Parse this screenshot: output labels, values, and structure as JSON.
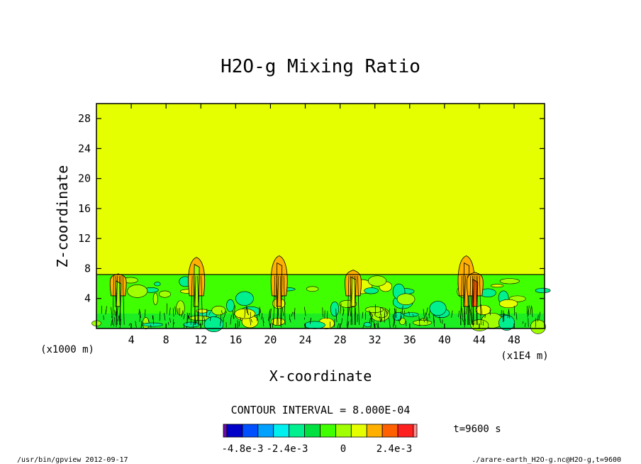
{
  "chart_data": {
    "type": "heatmap",
    "title": "H2O-g Mixing Ratio",
    "xlabel": "X-coordinate",
    "ylabel": "Z-coordinate",
    "x_unit_left": "(x1000 m)",
    "x_unit_right": "(x1E4 m)",
    "xlim": [
      0,
      51.5
    ],
    "ylim": [
      0,
      30
    ],
    "x_ticks": [
      4,
      8,
      12,
      16,
      20,
      24,
      28,
      32,
      36,
      40,
      44,
      48
    ],
    "y_ticks": [
      4,
      8,
      12,
      16,
      20,
      24,
      28
    ],
    "layer_top_z": 7.2,
    "plumes": [
      {
        "x": 2.5,
        "z": 7.3,
        "level": 8
      },
      {
        "x": 11.5,
        "z": 9.5,
        "level": 8
      },
      {
        "x": 21.0,
        "z": 9.7,
        "level": 10
      },
      {
        "x": 29.5,
        "z": 7.8,
        "level": 9
      },
      {
        "x": 42.5,
        "z": 9.7,
        "level": 10
      },
      {
        "x": 43.5,
        "z": 7.5,
        "level": 11
      }
    ],
    "contour_interval_text": "CONTOUR INTERVAL = 8.000E-04",
    "time_label": "t=9600 s",
    "colorbar": {
      "colors": [
        "#6a0dad",
        "#0000c8",
        "#0050ff",
        "#00a0ff",
        "#00f0f0",
        "#00f090",
        "#00e040",
        "#40ff00",
        "#a0ff00",
        "#e6ff00",
        "#ffb000",
        "#ff6000",
        "#ff2020",
        "#ff9090"
      ],
      "labels": [
        "-4.8e-3",
        "-2.4e-3",
        "0",
        "2.4e-3"
      ]
    },
    "footer_left": "/usr/bin/gpview  2012-09-17",
    "footer_right": "./arare-earth_H2O-g.nc@H2O-g,t=9600"
  }
}
